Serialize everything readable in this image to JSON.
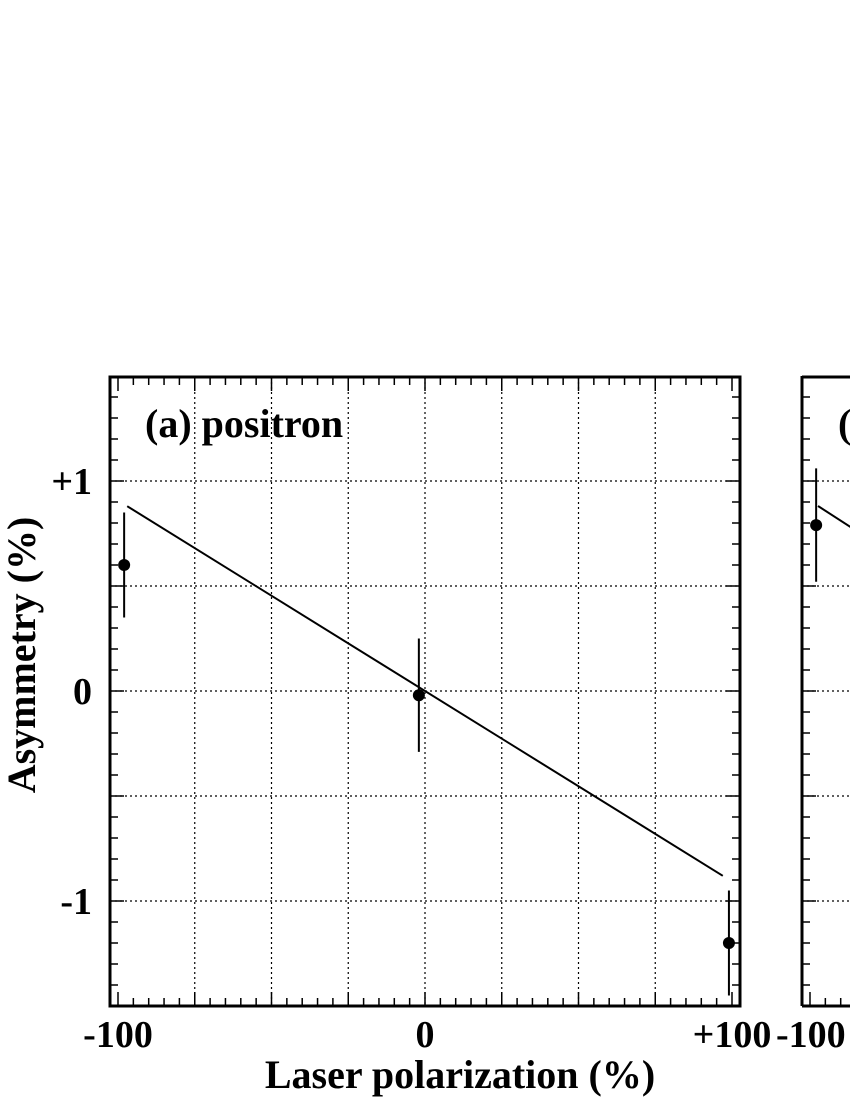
{
  "chart_data": [
    {
      "type": "scatter",
      "panel_label": "(a) positron",
      "xlabel": "Laser polarization (%)",
      "ylabel": "Asymmetry (%)",
      "xlim": [
        -102,
        104
      ],
      "ylim": [
        -1.5,
        1.5
      ],
      "x_ticks": [
        {
          "value": -100,
          "label": "-100"
        },
        {
          "value": 0,
          "label": "0"
        },
        {
          "value": 100,
          "label": "+100"
        }
      ],
      "y_ticks": [
        {
          "value": 1,
          "label": "+1"
        },
        {
          "value": 0,
          "label": "0"
        },
        {
          "value": -1,
          "label": "-1"
        }
      ],
      "grid": true,
      "points": [
        {
          "x": -98,
          "y": 0.6,
          "yerr": 0.25
        },
        {
          "x": -2,
          "y": -0.02,
          "yerr": 0.27
        },
        {
          "x": 99,
          "y": -1.2,
          "yerr": 0.25
        }
      ],
      "fit_line": {
        "x": [
          -97,
          97
        ],
        "y": [
          0.88,
          -0.88
        ]
      }
    },
    {
      "type": "scatter",
      "panel_label": "(",
      "x_ticks": [
        {
          "value": -100,
          "label": "-100"
        }
      ],
      "grid": true,
      "points": [
        {
          "x": -98,
          "y": 0.79,
          "yerr": 0.27
        }
      ]
    }
  ]
}
